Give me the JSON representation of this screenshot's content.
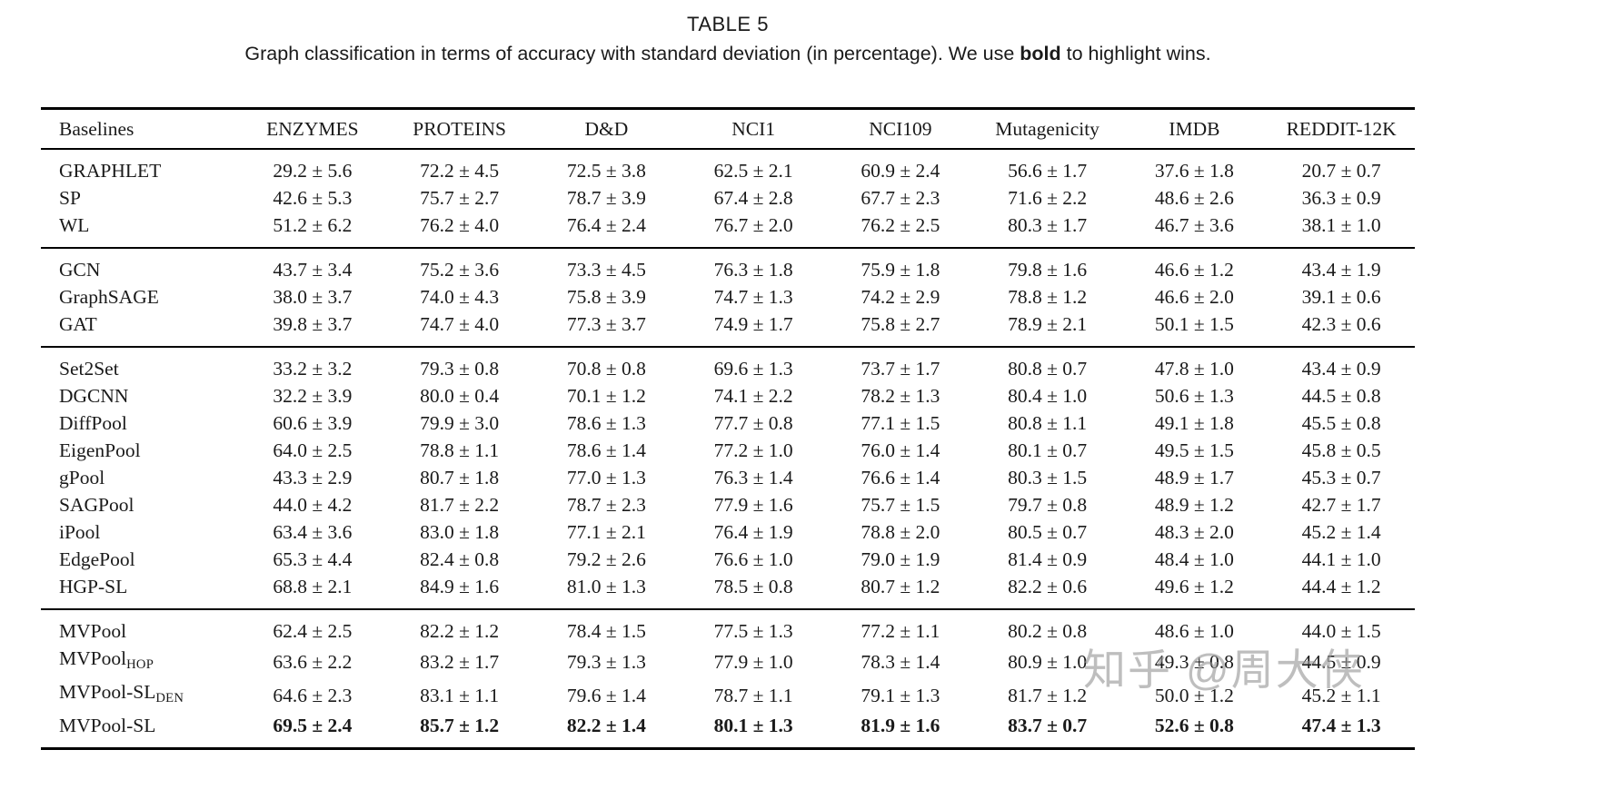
{
  "title": "TABLE 5",
  "caption": {
    "prefix": "Graph classification in terms of accuracy with standard deviation (in percentage). We use ",
    "bold_word": "bold",
    "suffix": " to highlight wins."
  },
  "watermark": "知乎 @周大侠",
  "table": {
    "headers": [
      "Baselines",
      "ENZYMES",
      "PROTEINS",
      "D&D",
      "NCI1",
      "NCI109",
      "Mutagenicity",
      "IMDB",
      "REDDIT-12K"
    ],
    "plus_minus": "±",
    "groups": [
      {
        "name": "graph-kernels",
        "rows": [
          {
            "name": "GRAPHLET",
            "subscript": "",
            "bold": false,
            "values": [
              "29.2 ± 5.6",
              "72.2 ± 4.5",
              "72.5 ± 3.8",
              "62.5 ± 2.1",
              "60.9 ± 2.4",
              "56.6 ± 1.7",
              "37.6 ± 1.8",
              "20.7 ± 0.7"
            ]
          },
          {
            "name": "SP",
            "subscript": "",
            "bold": false,
            "values": [
              "42.6 ± 5.3",
              "75.7 ± 2.7",
              "78.7 ± 3.9",
              "67.4 ± 2.8",
              "67.7 ± 2.3",
              "71.6 ± 2.2",
              "48.6 ± 2.6",
              "36.3 ± 0.9"
            ]
          },
          {
            "name": "WL",
            "subscript": "",
            "bold": false,
            "values": [
              "51.2 ± 6.2",
              "76.2 ± 4.0",
              "76.4 ± 2.4",
              "76.7 ± 2.0",
              "76.2 ± 2.5",
              "80.3 ± 1.7",
              "46.7 ± 3.6",
              "38.1 ± 1.0"
            ]
          }
        ]
      },
      {
        "name": "gnn-baselines",
        "rows": [
          {
            "name": "GCN",
            "subscript": "",
            "bold": false,
            "values": [
              "43.7 ± 3.4",
              "75.2 ± 3.6",
              "73.3 ± 4.5",
              "76.3 ± 1.8",
              "75.9 ± 1.8",
              "79.8 ± 1.6",
              "46.6 ± 1.2",
              "43.4 ± 1.9"
            ]
          },
          {
            "name": "GraphSAGE",
            "subscript": "",
            "bold": false,
            "values": [
              "38.0 ± 3.7",
              "74.0 ± 4.3",
              "75.8 ± 3.9",
              "74.7 ± 1.3",
              "74.2 ± 2.9",
              "78.8 ± 1.2",
              "46.6 ± 2.0",
              "39.1 ± 0.6"
            ]
          },
          {
            "name": "GAT",
            "subscript": "",
            "bold": false,
            "values": [
              "39.8 ± 3.7",
              "74.7 ± 4.0",
              "77.3 ± 3.7",
              "74.9 ± 1.7",
              "75.8 ± 2.7",
              "78.9 ± 2.1",
              "50.1 ± 1.5",
              "42.3 ± 0.6"
            ]
          }
        ]
      },
      {
        "name": "pooling-methods",
        "rows": [
          {
            "name": "Set2Set",
            "subscript": "",
            "bold": false,
            "values": [
              "33.2 ± 3.2",
              "79.3 ± 0.8",
              "70.8 ± 0.8",
              "69.6 ± 1.3",
              "73.7 ± 1.7",
              "80.8 ± 0.7",
              "47.8 ± 1.0",
              "43.4 ± 0.9"
            ]
          },
          {
            "name": "DGCNN",
            "subscript": "",
            "bold": false,
            "values": [
              "32.2 ± 3.9",
              "80.0 ± 0.4",
              "70.1 ± 1.2",
              "74.1 ± 2.2",
              "78.2 ± 1.3",
              "80.4 ± 1.0",
              "50.6 ± 1.3",
              "44.5 ± 0.8"
            ]
          },
          {
            "name": "DiffPool",
            "subscript": "",
            "bold": false,
            "values": [
              "60.6 ± 3.9",
              "79.9 ± 3.0",
              "78.6 ± 1.3",
              "77.7 ± 0.8",
              "77.1 ± 1.5",
              "80.8 ± 1.1",
              "49.1 ± 1.8",
              "45.5 ± 0.8"
            ]
          },
          {
            "name": "EigenPool",
            "subscript": "",
            "bold": false,
            "values": [
              "64.0 ± 2.5",
              "78.8 ± 1.1",
              "78.6 ± 1.4",
              "77.2 ± 1.0",
              "76.0 ± 1.4",
              "80.1 ± 0.7",
              "49.5 ± 1.5",
              "45.8 ± 0.5"
            ]
          },
          {
            "name": "gPool",
            "subscript": "",
            "bold": false,
            "values": [
              "43.3 ± 2.9",
              "80.7 ± 1.8",
              "77.0 ± 1.3",
              "76.3 ± 1.4",
              "76.6 ± 1.4",
              "80.3 ± 1.5",
              "48.9 ± 1.7",
              "45.3 ± 0.7"
            ]
          },
          {
            "name": "SAGPool",
            "subscript": "",
            "bold": false,
            "values": [
              "44.0 ± 4.2",
              "81.7 ± 2.2",
              "78.7 ± 2.3",
              "77.9 ± 1.6",
              "75.7 ± 1.5",
              "79.7 ± 0.8",
              "48.9 ± 1.2",
              "42.7 ± 1.7"
            ]
          },
          {
            "name": "iPool",
            "subscript": "",
            "bold": false,
            "values": [
              "63.4 ± 3.6",
              "83.0 ± 1.8",
              "77.1 ± 2.1",
              "76.4 ± 1.9",
              "78.8 ± 2.0",
              "80.5 ± 0.7",
              "48.3 ± 2.0",
              "45.2 ± 1.4"
            ]
          },
          {
            "name": "EdgePool",
            "subscript": "",
            "bold": false,
            "values": [
              "65.3 ± 4.4",
              "82.4 ± 0.8",
              "79.2 ± 2.6",
              "76.6 ± 1.0",
              "79.0 ± 1.9",
              "81.4 ± 0.9",
              "48.4 ± 1.0",
              "44.1 ± 1.0"
            ]
          },
          {
            "name": "HGP-SL",
            "subscript": "",
            "bold": false,
            "values": [
              "68.8 ± 2.1",
              "84.9 ± 1.6",
              "81.0 ± 1.3",
              "78.5 ± 0.8",
              "80.7 ± 1.2",
              "82.2 ± 0.6",
              "49.6 ± 1.2",
              "44.4 ± 1.2"
            ]
          }
        ]
      },
      {
        "name": "mvpool-variants",
        "rows": [
          {
            "name": "MVPool",
            "subscript": "",
            "bold": false,
            "values": [
              "62.4 ± 2.5",
              "82.2 ± 1.2",
              "78.4 ± 1.5",
              "77.5 ± 1.3",
              "77.2 ± 1.1",
              "80.2 ± 0.8",
              "48.6 ± 1.0",
              "44.0 ± 1.5"
            ]
          },
          {
            "name": "MVPool",
            "subscript": "HOP",
            "bold": false,
            "values": [
              "63.6 ± 2.2",
              "83.2 ± 1.7",
              "79.3 ± 1.3",
              "77.9 ± 1.0",
              "78.3 ± 1.4",
              "80.9 ± 1.0",
              "49.3 ± 0.8",
              "44.5 ± 0.9"
            ]
          },
          {
            "name": "MVPool-SL",
            "subscript": "DEN",
            "bold": false,
            "values": [
              "64.6 ± 2.3",
              "83.1 ± 1.1",
              "79.6 ± 1.4",
              "78.7 ± 1.1",
              "79.1 ± 1.3",
              "81.7 ± 1.2",
              "50.0 ± 1.2",
              "45.2 ± 1.1"
            ]
          },
          {
            "name": "MVPool-SL",
            "subscript": "",
            "bold": true,
            "values": [
              "69.5 ± 2.4",
              "85.7 ± 1.2",
              "82.2 ± 1.4",
              "80.1 ± 1.3",
              "81.9 ± 1.6",
              "83.7 ± 0.7",
              "52.6 ± 0.8",
              "47.4 ± 1.3"
            ]
          }
        ]
      }
    ]
  }
}
